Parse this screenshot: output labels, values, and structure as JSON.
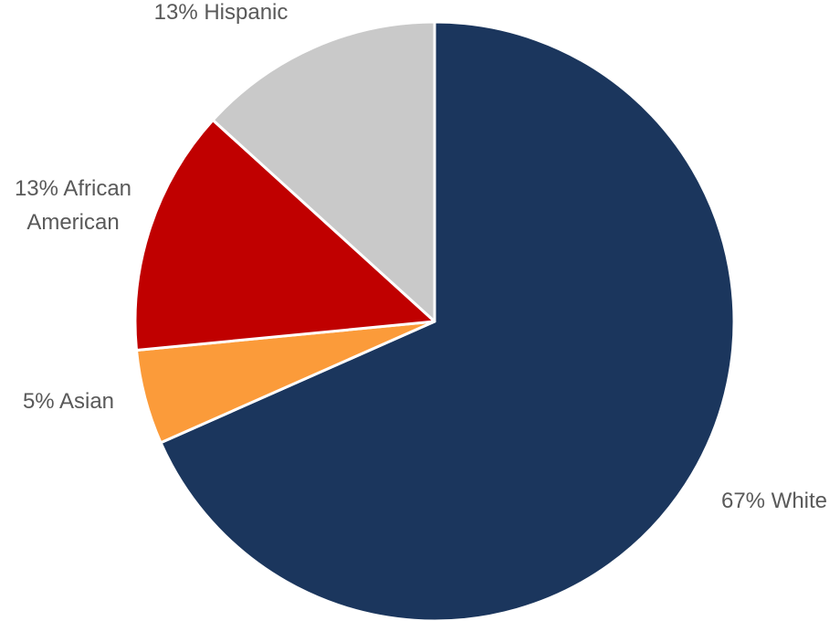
{
  "chart_data": {
    "type": "pie",
    "slices": [
      {
        "category": "White",
        "value": 67,
        "label_lines": [
          "67% White"
        ],
        "color": "#1b365d"
      },
      {
        "category": "Asian",
        "value": 5,
        "label_lines": [
          "5% Asian"
        ],
        "color": "#fb9b3a"
      },
      {
        "category": "African American",
        "value": 13,
        "label_lines": [
          "13% African",
          "American"
        ],
        "color": "#c00000"
      },
      {
        "category": "Hispanic",
        "value": 13,
        "label_lines": [
          "13% Hispanic"
        ],
        "color": "#c9c9c9"
      }
    ],
    "start_angle_deg": 0,
    "direction": "clockwise",
    "legend": "none",
    "label_color": "#595959",
    "slice_border_color": "#ffffff"
  }
}
